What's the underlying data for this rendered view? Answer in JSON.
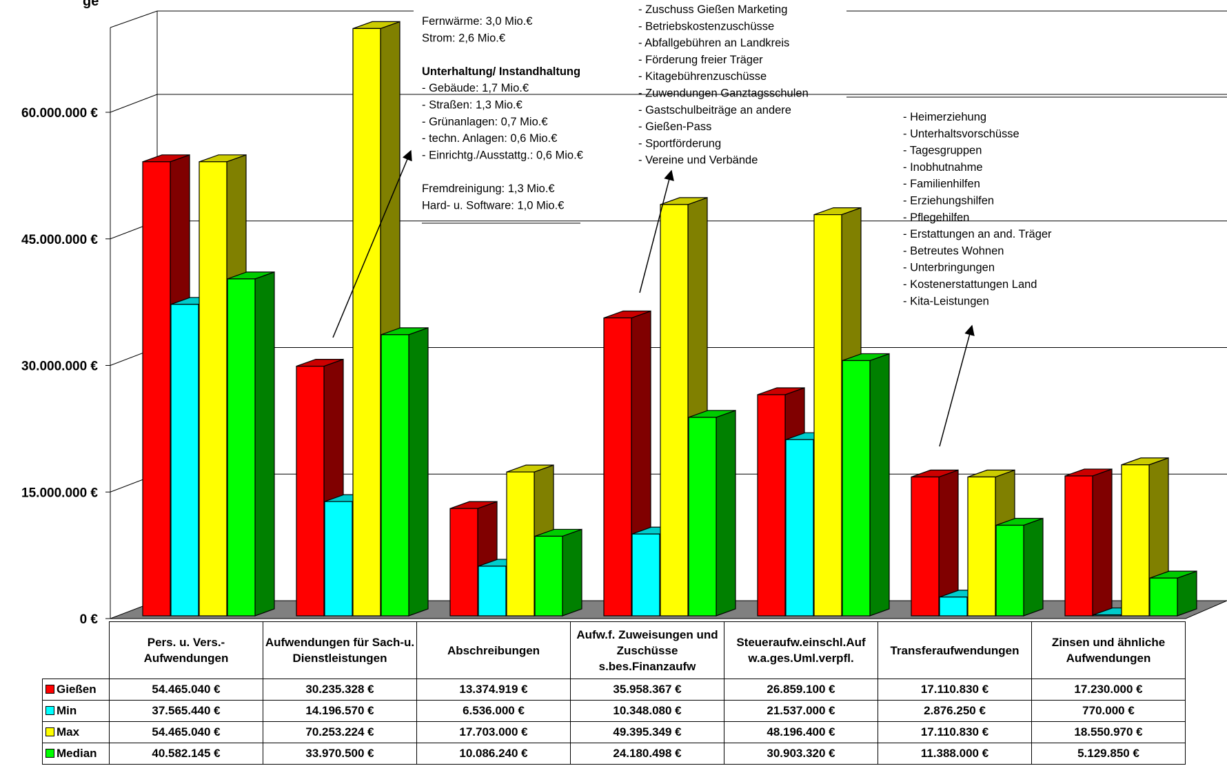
{
  "title": "ge",
  "colors": {
    "Gießen": "#ff0000",
    "Min": "#00ffff",
    "Max": "#ffff00",
    "Median": "#00ff00"
  },
  "chart_data": {
    "type": "bar",
    "categories": [
      "Pers. u. Vers.-Aufwendungen",
      "Aufwendungen für Sach- u. Dienstleistungen",
      "Abschreibungen",
      "Aufw.f. Zuweisungen und Zuschüsse s.bes.Finanzaufw",
      "Steueraufw.einschl.Aufw.a.ges.Uml.verpfl.",
      "Transferaufwendungen",
      "Zinsen und ähnliche Aufwendungen"
    ],
    "series": [
      {
        "name": "Gießen",
        "values": [
          54465040,
          30235328,
          13374919,
          35958367,
          26859100,
          17110830,
          17230000
        ]
      },
      {
        "name": "Min",
        "values": [
          37565440,
          14196570,
          6536000,
          10348080,
          21537000,
          2876250,
          770000
        ]
      },
      {
        "name": "Max",
        "values": [
          54465040,
          70253224,
          17703000,
          49395349,
          48196400,
          17110830,
          18550970
        ]
      },
      {
        "name": "Median",
        "values": [
          40582145,
          33970500,
          10086240,
          24180498,
          30903320,
          11388000,
          5129850
        ]
      }
    ],
    "ylim": [
      0,
      72000000
    ],
    "yticks": [
      0,
      15000000,
      30000000,
      45000000,
      60000000
    ],
    "ytick_labels": [
      "0 €",
      "15.000.000 €",
      "30.000.000 €",
      "45.000.000 €",
      "60.000.000 €"
    ],
    "table_values": [
      [
        "54.465.040 €",
        "30.235.328 €",
        "13.374.919 €",
        "35.958.367 €",
        "26.859.100 €",
        "17.110.830 €",
        "17.230.000 €"
      ],
      [
        "37.565.440 €",
        "14.196.570 €",
        "6.536.000 €",
        "10.348.080 €",
        "21.537.000 €",
        "2.876.250 €",
        "770.000 €"
      ],
      [
        "54.465.040 €",
        "70.253.224 €",
        "17.703.000 €",
        "49.395.349 €",
        "48.196.400 €",
        "17.110.830 €",
        "18.550.970 €"
      ],
      [
        "40.582.145 €",
        "33.970.500 €",
        "10.086.240 €",
        "24.180.498 €",
        "30.903.320 €",
        "11.388.000 €",
        "5.129.850 €"
      ]
    ],
    "grid": true,
    "legend": "table"
  },
  "annotations": {
    "sach": [
      {
        "text": "Fernwärme: 3,0 Mio.€",
        "bold": false
      },
      {
        "text": "Strom: 2,6 Mio.€",
        "bold": false
      },
      {
        "text": "",
        "bold": false
      },
      {
        "text": "Unterhaltung/ Instandhaltung",
        "bold": true
      },
      {
        "text": "- Gebäude: 1,7 Mio.€",
        "bold": false
      },
      {
        "text": "- Straßen: 1,3 Mio.€",
        "bold": false
      },
      {
        "text": "- Grünanlagen: 0,7 Mio.€",
        "bold": false
      },
      {
        "text": "- techn. Anlagen: 0,6 Mio.€",
        "bold": false
      },
      {
        "text": "- Einrichtg./Ausstattg.: 0,6 Mio.€",
        "bold": false
      },
      {
        "text": "",
        "bold": false
      },
      {
        "text": "Fremdreinigung: 1,3 Mio.€",
        "bold": false
      },
      {
        "text": "Hard- u. Software: 1,0 Mio.€",
        "bold": false
      }
    ],
    "zuweisungen": [
      "- Zuschuss Gießen Marketing",
      "- Betriebskostenzuschüsse",
      "- Abfallgebühren an Landkreis",
      "- Förderung freier Träger",
      "- Kitagebührenzuschüsse",
      "- Zuwendungen Ganztagsschulen",
      "- Gastschulbeiträge an andere",
      "- Gießen-Pass",
      "- Sportförderung",
      "- Vereine und Verbände"
    ],
    "transfer": [
      "- Heimerziehung",
      "- Unterhaltsvorschüsse",
      "- Tagesgruppen",
      "- Inobhutnahme",
      "- Familienhilfen",
      "- Erziehungshilfen",
      "- Pflegehilfen",
      "- Erstattungen an and. Träger",
      "- Betreutes Wohnen",
      "- Unterbringungen",
      "- Kostenerstattungen Land",
      "- Kita-Leistungen"
    ]
  },
  "table": {
    "headers": [
      "Pers. u. Vers.-Aufwendungen",
      "Aufwendungen für Sach-u. Dienstleistungen",
      "Abschreibungen",
      "Aufw.f. Zuweisungen und Zuschüsse s.bes.Finanzaufw",
      "Steueraufw.einschl.Auf w.a.ges.Uml.verpfl.",
      "Transferaufwendungen",
      "Zinsen und ähnliche Aufwendungen"
    ],
    "rows": [
      {
        "label": "Gießen",
        "color": "#ff0000"
      },
      {
        "label": "Min",
        "color": "#00ffff"
      },
      {
        "label": "Max",
        "color": "#ffff00"
      },
      {
        "label": "Median",
        "color": "#00ff00"
      }
    ]
  }
}
